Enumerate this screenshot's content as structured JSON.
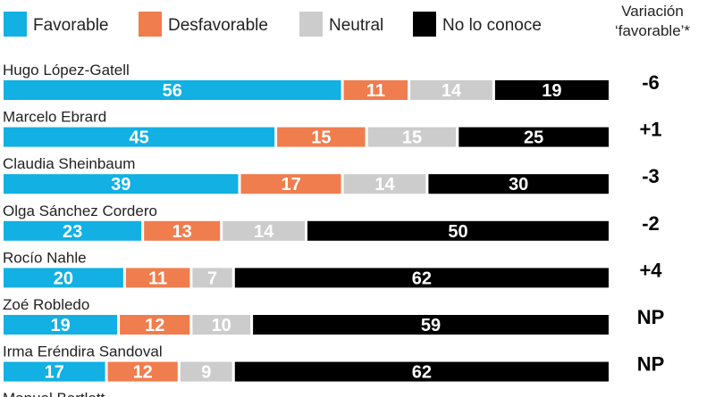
{
  "chart_data": {
    "type": "bar",
    "orientation": "horizontal",
    "stacked": true,
    "legend_position": "top",
    "variation_header": [
      "Variación",
      "‘favorable’*"
    ],
    "series": [
      {
        "name": "Favorable",
        "color": "#12b0e3",
        "label_color": "#ffffff"
      },
      {
        "name": "Desfavorable",
        "color": "#f07d4e",
        "label_color": "#ffffff"
      },
      {
        "name": "Neutral",
        "color": "#cccccc",
        "label_color": "#ffffff"
      },
      {
        "name": "No lo conoce",
        "color": "#000000",
        "label_color": "#ffffff"
      }
    ],
    "rows": [
      {
        "name": "Hugo López-Gatell",
        "values": [
          56,
          11,
          14,
          19
        ],
        "variation": "-6"
      },
      {
        "name": "Marcelo Ebrard",
        "values": [
          45,
          15,
          15,
          25
        ],
        "variation": "+1"
      },
      {
        "name": "Claudia Sheinbaum",
        "values": [
          39,
          17,
          14,
          30
        ],
        "variation": "-3"
      },
      {
        "name": "Olga Sánchez Cordero",
        "values": [
          23,
          13,
          14,
          50
        ],
        "variation": "-2"
      },
      {
        "name": "Rocío Nahle",
        "values": [
          20,
          11,
          7,
          62
        ],
        "variation": "+4"
      },
      {
        "name": "Zoé Robledo",
        "values": [
          19,
          12,
          10,
          59
        ],
        "variation": "NP"
      },
      {
        "name": "Irma Eréndira Sandoval",
        "values": [
          17,
          12,
          9,
          62
        ],
        "variation": "NP"
      },
      {
        "name": "Manuel Bartlett",
        "values": [],
        "variation": ""
      }
    ]
  }
}
